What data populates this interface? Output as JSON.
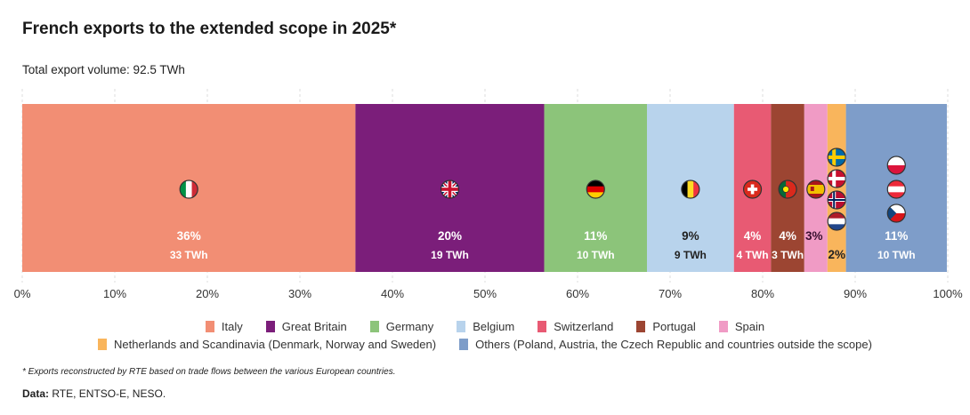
{
  "chart_data": {
    "type": "bar",
    "orientation": "horizontal-stacked-100",
    "title": "French exports to the extended scope in 2025*",
    "subtitle": "Total export volume: 92.5 TWh",
    "xlim": [
      0,
      100
    ],
    "x_ticks": [
      "0%",
      "10%",
      "20%",
      "30%",
      "40%",
      "50%",
      "60%",
      "70%",
      "80%",
      "90%",
      "100%"
    ],
    "grid": true,
    "legend_position": "bottom",
    "series": [
      {
        "name": "Italy",
        "share": 36.0,
        "pct_label": "36%",
        "twh_label": "33 TWh",
        "color": "#F28E74",
        "label_color": "#ffffff",
        "flags": [
          "it"
        ]
      },
      {
        "name": "Great Britain",
        "share": 20.4,
        "pct_label": "20%",
        "twh_label": "19 TWh",
        "color": "#7B1E7A",
        "label_color": "#ffffff",
        "flags": [
          "gb"
        ]
      },
      {
        "name": "Germany",
        "share": 11.1,
        "pct_label": "11%",
        "twh_label": "10 TWh",
        "color": "#8CC47A",
        "label_color": "#ffffff",
        "flags": [
          "de"
        ]
      },
      {
        "name": "Belgium",
        "share": 9.4,
        "pct_label": "9%",
        "twh_label": "9 TWh",
        "color": "#B8D3EC",
        "label_color": "#222222",
        "flags": [
          "be"
        ]
      },
      {
        "name": "Switzerland",
        "share": 4.0,
        "pct_label": "4%",
        "twh_label": "4 TWh",
        "color": "#E85A73",
        "label_color": "#ffffff",
        "flags": [
          "ch"
        ]
      },
      {
        "name": "Portugal",
        "share": 3.6,
        "pct_label": "4%",
        "twh_label": "3 TWh",
        "color": "#9C4532",
        "label_color": "#ffffff",
        "flags": [
          "pt"
        ]
      },
      {
        "name": "Spain",
        "share": 2.5,
        "pct_label": "3%",
        "twh_label": "",
        "color": "#F09BC5",
        "label_color": "#3a1030",
        "flags": [
          "es"
        ]
      },
      {
        "name": "Netherlands and Scandinavia (Denmark, Norway and Sweden)",
        "share": 2.0,
        "pct_label": "2%",
        "twh_label": "",
        "color": "#F9B55C",
        "label_color": "#222222",
        "flags": [
          "se",
          "dk",
          "no",
          "nl"
        ]
      },
      {
        "name": "Others (Poland, Austria, the Czech Republic and countries outside the scope)",
        "share": 10.9,
        "pct_label": "11%",
        "twh_label": "10 TWh",
        "color": "#7E9DC9",
        "label_color": "#ffffff",
        "flags": [
          "pl",
          "at",
          "cz"
        ]
      }
    ]
  },
  "footnote": "* Exports reconstructed by RTE based on trade flows between the various European countries.",
  "source": {
    "label": "Data:",
    "text": " RTE, ENTSO-E, NESO."
  }
}
